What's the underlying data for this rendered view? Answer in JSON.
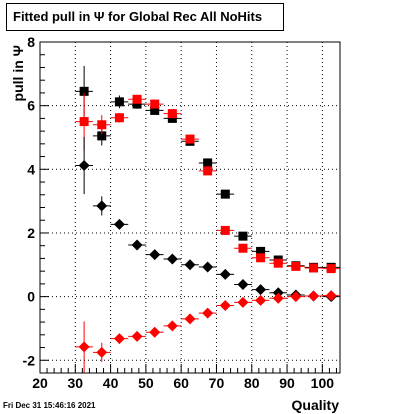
{
  "chart_data": {
    "type": "scatter",
    "title": "Fitted pull in  Ψ  for Global Rec All NoHits",
    "xlabel": "Quality",
    "ylabel": "pull in  Ψ",
    "xlim": [
      20,
      105
    ],
    "ylim": [
      -2.4,
      8
    ],
    "x_ticks": [
      20,
      30,
      40,
      50,
      60,
      70,
      80,
      90,
      100
    ],
    "y_ticks": [
      -2,
      0,
      2,
      4,
      6,
      8
    ],
    "grid": true,
    "x": [
      32.5,
      37.5,
      42.5,
      47.5,
      52.5,
      57.5,
      62.5,
      67.5,
      72.5,
      77.5,
      82.5,
      87.5,
      92.5,
      97.5,
      102.5
    ],
    "series": [
      {
        "marker": "square",
        "color": "#000000",
        "values": [
          6.45,
          5.05,
          6.12,
          6.05,
          5.85,
          5.6,
          4.88,
          4.2,
          3.22,
          1.9,
          1.42,
          1.15,
          0.97,
          0.92,
          0.92
        ],
        "errors": [
          0.8,
          0.3,
          0.2,
          0.15,
          0.12,
          0.1,
          0.1,
          0.1,
          0.08,
          0.06,
          0.05,
          0.05,
          0.05,
          0.05,
          0.05
        ]
      },
      {
        "marker": "square",
        "color": "#ff0000",
        "values": [
          5.5,
          5.4,
          5.62,
          6.2,
          6.05,
          5.75,
          4.95,
          3.95,
          2.08,
          1.52,
          1.22,
          1.05,
          0.95,
          0.9,
          0.88
        ],
        "errors": [
          0.9,
          0.3,
          0.15,
          0.12,
          0.1,
          0.1,
          0.08,
          0.08,
          0.06,
          0.05,
          0.05,
          0.05,
          0.05,
          0.05,
          0.05
        ]
      },
      {
        "marker": "diamond",
        "color": "#000000",
        "values": [
          4.12,
          2.85,
          2.27,
          1.62,
          1.32,
          1.18,
          1.0,
          0.93,
          0.7,
          0.38,
          0.22,
          0.12,
          0.05,
          0.02,
          0.0
        ],
        "errors": [
          0.9,
          0.3,
          0.15,
          0.08,
          0.06,
          0.05,
          0.05,
          0.05,
          0.04,
          0.04,
          0.04,
          0.04,
          0.04,
          0.04,
          0.04
        ]
      },
      {
        "marker": "diamond",
        "color": "#ff0000",
        "values": [
          -1.58,
          -1.75,
          -1.32,
          -1.25,
          -1.12,
          -0.92,
          -0.7,
          -0.52,
          -0.28,
          -0.18,
          -0.12,
          -0.05,
          0.0,
          0.02,
          0.03
        ],
        "errors": [
          0.8,
          0.3,
          0.12,
          0.08,
          0.06,
          0.05,
          0.05,
          0.05,
          0.04,
          0.04,
          0.04,
          0.04,
          0.04,
          0.04,
          0.04
        ]
      }
    ]
  },
  "footer": {
    "timestamp": "Fri Dec 31 15:46:16 2021"
  }
}
